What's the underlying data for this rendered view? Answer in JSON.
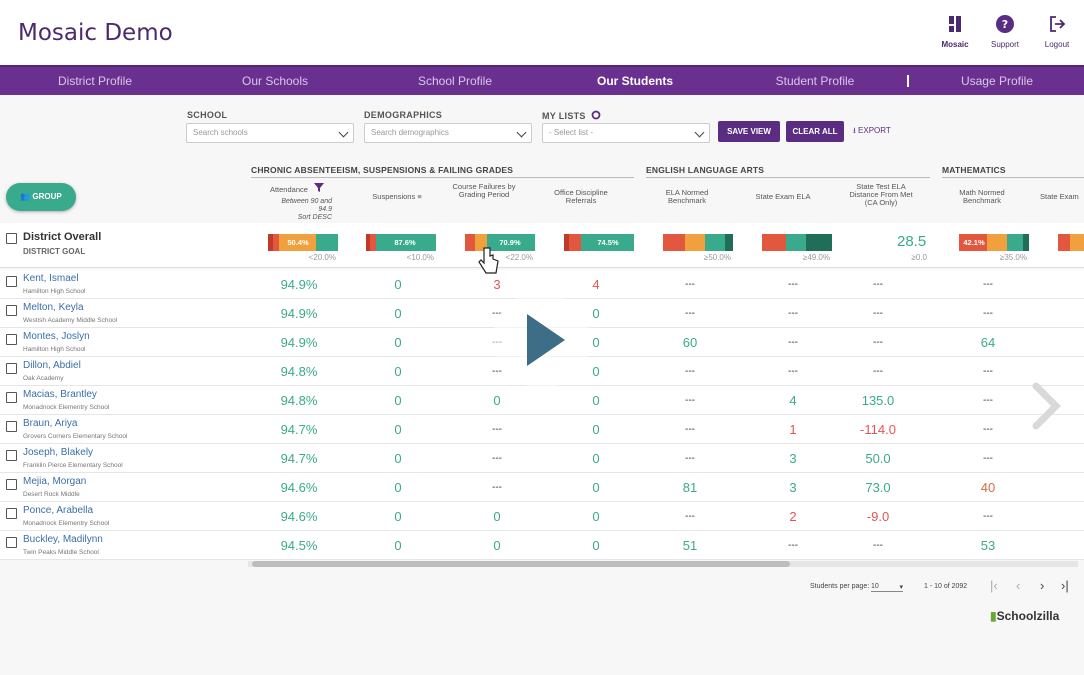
{
  "app": {
    "title": "Mosaic Demo"
  },
  "header_buttons": [
    {
      "label": "Mosaic",
      "icon": "mosaic-icon"
    },
    {
      "label": "Support",
      "icon": "question-icon"
    },
    {
      "label": "Logout",
      "icon": "logout-icon"
    }
  ],
  "nav": [
    "District Profile",
    "Our Schools",
    "School Profile",
    "Our Students",
    "Student Profile",
    "Usage Profile"
  ],
  "nav_active": "Our Students",
  "filters": {
    "school_label": "SCHOOL",
    "school_placeholder": "Search schools",
    "demo_label": "DEMOGRAPHICS",
    "demo_placeholder": "Search demographics",
    "lists_label": "MY LISTS",
    "lists_placeholder": "- Select list -",
    "save": "SAVE VIEW",
    "clear": "CLEAR ALL",
    "export": "EXPORT"
  },
  "group_button": "GROUP",
  "sections": [
    "CHRONIC ABSENTEEISM, SUSPENSIONS & FAILING GRADES",
    "ENGLISH LANGUAGE ARTS",
    "MATHEMATICS"
  ],
  "columns": [
    "Attendance",
    "Suspensions",
    "Course Failures by Grading Period",
    "Office Discipline Referrals",
    "ELA Normed Benchmark",
    "State Exam ELA",
    "State Test ELA Distance From Met (CA Only)",
    "Math Normed Benchmark",
    "State Exam"
  ],
  "attendance_sub": [
    "Between 90 and",
    "94.9",
    "Sort DESC"
  ],
  "overall": {
    "title": "District Overall",
    "subtitle": "DISTRICT GOAL",
    "bars": [
      "50.4%",
      "87.6%",
      "70.9%",
      "74.5%",
      "",
      "",
      "",
      "42.1%"
    ],
    "big_value": "28.5",
    "goals": [
      "<20.0%",
      "<10.0%",
      "<22.0%",
      "",
      "≥50.0%",
      "≥49.0%",
      "≥0.0",
      "≥35.0%"
    ]
  },
  "students": [
    {
      "name": "Kent, Ismael",
      "school": "Hamilton High School",
      "vals": [
        "94.9%",
        "0",
        "3",
        "4",
        "---",
        "---",
        "---",
        "---"
      ]
    },
    {
      "name": "Melton, Keyla",
      "school": "Westish Academy Middle School",
      "vals": [
        "94.9%",
        "0",
        "---",
        "0",
        "---",
        "---",
        "---",
        "---"
      ]
    },
    {
      "name": "Montes, Joslyn",
      "school": "Hamilton High School",
      "vals": [
        "94.9%",
        "0",
        "---",
        "0",
        "60",
        "---",
        "---",
        "64"
      ]
    },
    {
      "name": "Dillon, Abdiel",
      "school": "Oak Academy",
      "vals": [
        "94.8%",
        "0",
        "---",
        "0",
        "---",
        "---",
        "---",
        "---"
      ]
    },
    {
      "name": "Macias, Brantley",
      "school": "Monadnock Elementry School",
      "vals": [
        "94.8%",
        "0",
        "0",
        "0",
        "---",
        "4",
        "135.0",
        "---"
      ]
    },
    {
      "name": "Braun, Ariya",
      "school": "Grovers Corners Elementary School",
      "vals": [
        "94.7%",
        "0",
        "---",
        "0",
        "---",
        "1",
        "-114.0",
        "---"
      ]
    },
    {
      "name": "Joseph, Blakely",
      "school": "Franklin Pierce Elementary School",
      "vals": [
        "94.7%",
        "0",
        "---",
        "0",
        "---",
        "3",
        "50.0",
        "---"
      ]
    },
    {
      "name": "Mejia, Morgan",
      "school": "Desert Rock Middle",
      "vals": [
        "94.6%",
        "0",
        "---",
        "0",
        "81",
        "3",
        "73.0",
        "40"
      ]
    },
    {
      "name": "Ponce, Arabella",
      "school": "Monadnock Elementry School",
      "vals": [
        "94.6%",
        "0",
        "0",
        "0",
        "---",
        "2",
        "-9.0",
        "---"
      ]
    },
    {
      "name": "Buckley, Madilynn",
      "school": "Twin Peaks Middle School",
      "vals": [
        "94.5%",
        "0",
        "0",
        "0",
        "51",
        "---",
        "---",
        "53"
      ]
    }
  ],
  "footer": {
    "per_page_label": "Students per page:",
    "per_page": "10",
    "range": "1 - 10 of 2092"
  },
  "brand": "Schoolzilla"
}
